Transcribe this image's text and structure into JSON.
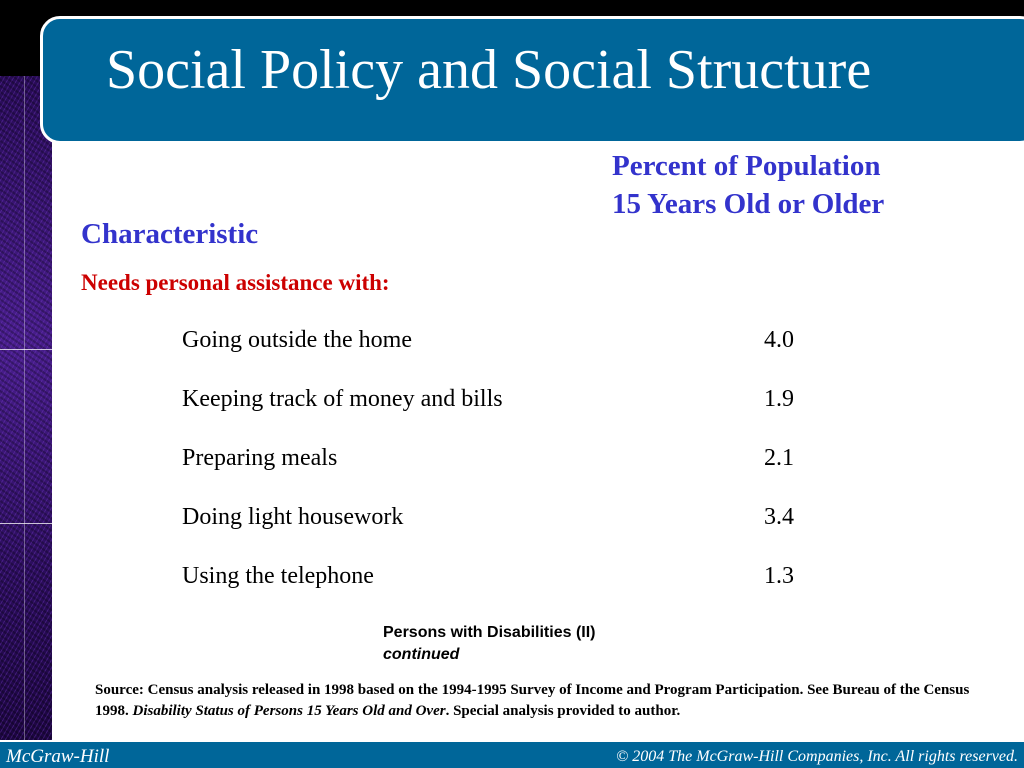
{
  "slide": {
    "title": "Social Policy and Social Structure"
  },
  "table": {
    "column_header_line1": "Percent of Population",
    "column_header_line2": "15 Years Old or Older",
    "row_header": "Characteristic",
    "section_label": "Needs personal assistance with:",
    "rows": [
      {
        "label": "Going outside the home",
        "value": "4.0"
      },
      {
        "label": "Keeping track of money and bills",
        "value": "1.9"
      },
      {
        "label": "Preparing meals",
        "value": "2.1"
      },
      {
        "label": "Doing light housework",
        "value": "3.4"
      },
      {
        "label": "Using the telephone",
        "value": "1.3"
      }
    ]
  },
  "caption": {
    "title": "Persons with Disabilities (II)",
    "continued": "continued"
  },
  "source": {
    "text_start": "Source: Census analysis released in 1998 based on the 1994-1995 Survey of Income and Program Participation. See Bureau of the Census 1998. ",
    "text_italic": "Disability Status of Persons 15 Years Old and Over",
    "text_end": ". Special analysis provided to author."
  },
  "footer": {
    "publisher": "McGraw-Hill",
    "copyright": "© 2004 The McGraw-Hill Companies, Inc. All rights reserved."
  },
  "colors": {
    "title_band": "#006699",
    "heading_blue": "#3333cc",
    "section_red": "#cc0000",
    "strip_purple": "#2a0d5a"
  }
}
